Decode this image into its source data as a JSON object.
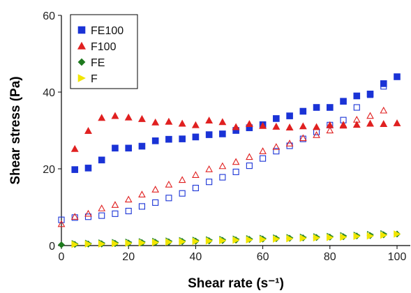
{
  "chart_data": {
    "type": "scatter",
    "xlabel": "Shear rate (s⁻¹)",
    "ylabel": "Shear stress (Pa)",
    "xlim": [
      0,
      105
    ],
    "ylim": [
      0,
      60
    ],
    "xticks": [
      "0",
      "20",
      "40",
      "60",
      "80",
      "100"
    ],
    "yticks": [
      "0",
      "20",
      "40",
      "60"
    ],
    "legend_position": "top-left",
    "grid": false,
    "series": [
      {
        "name": "FE100",
        "marker": "square",
        "color": "#1a33d6",
        "up": {
          "x": [
            4,
            8,
            12,
            16,
            20,
            24,
            28,
            32,
            36,
            40,
            44,
            48,
            52,
            56,
            60,
            64,
            68,
            72,
            76,
            80,
            84,
            88,
            92,
            96,
            100
          ],
          "y": [
            19.8,
            20.2,
            22.3,
            25.4,
            25.4,
            25.9,
            27.3,
            27.7,
            27.8,
            28.3,
            28.9,
            29.1,
            30.0,
            30.7,
            31.5,
            33.1,
            33.8,
            35.0,
            36.0,
            36.0,
            37.6,
            39.0,
            39.5,
            42.2,
            44.0
          ]
        },
        "down": {
          "x": [
            0,
            4,
            8,
            12,
            16,
            20,
            24,
            28,
            32,
            36,
            40,
            44,
            48,
            52,
            56,
            60,
            64,
            68,
            72,
            76,
            80,
            84,
            88,
            92,
            96
          ],
          "y": [
            6.7,
            7.3,
            7.5,
            7.8,
            8.3,
            9.0,
            10.2,
            11.2,
            12.4,
            13.6,
            15.0,
            16.6,
            17.8,
            19.2,
            20.8,
            22.7,
            24.6,
            26.0,
            27.8,
            29.6,
            31.4,
            32.7,
            36.0,
            39.3,
            41.5
          ]
        }
      },
      {
        "name": "F100",
        "marker": "triangle",
        "color": "#e02020",
        "up": {
          "x": [
            4,
            8,
            12,
            16,
            20,
            24,
            28,
            32,
            36,
            40,
            44,
            48,
            52,
            56,
            60,
            64,
            68,
            72,
            76,
            80,
            84,
            88,
            92,
            96,
            100
          ],
          "y": [
            25.2,
            29.9,
            33.3,
            33.8,
            33.4,
            33.0,
            32.1,
            32.3,
            31.8,
            31.4,
            32.6,
            32.2,
            30.9,
            31.7,
            31.2,
            31.0,
            30.8,
            31.1,
            30.9,
            31.4,
            31.3,
            31.5,
            31.8,
            31.7,
            31.9
          ]
        },
        "down": {
          "x": [
            0,
            4,
            8,
            12,
            16,
            20,
            24,
            28,
            32,
            36,
            40,
            44,
            48,
            52,
            56,
            60,
            64,
            68,
            72,
            76,
            80,
            84,
            88,
            92,
            96
          ],
          "y": [
            5.6,
            7.5,
            8.3,
            9.7,
            10.6,
            12.0,
            13.3,
            14.6,
            15.9,
            17.1,
            18.4,
            19.9,
            20.7,
            21.8,
            23.1,
            24.6,
            25.7,
            26.6,
            28.0,
            28.8,
            30.0,
            31.5,
            32.8,
            33.8,
            35.2
          ]
        }
      },
      {
        "name": "FE",
        "marker": "diamond",
        "color": "#1e7a1e",
        "up": {
          "x": [
            0,
            4,
            8,
            12,
            16,
            20,
            24,
            28,
            32,
            36,
            40,
            44,
            48,
            52,
            56,
            60,
            64,
            68,
            72,
            76,
            80,
            84,
            88,
            92,
            96,
            100
          ],
          "y": [
            0.2,
            0.3,
            0.4,
            0.4,
            0.5,
            0.6,
            0.7,
            0.8,
            0.9,
            1.0,
            1.1,
            1.2,
            1.3,
            1.4,
            1.6,
            1.7,
            1.8,
            1.9,
            2.0,
            2.1,
            2.2,
            2.3,
            2.5,
            2.6,
            2.8,
            3.0
          ]
        },
        "down": {
          "x": [
            4,
            8,
            12,
            16,
            20,
            24,
            28,
            32,
            36,
            40,
            44,
            48,
            52,
            56,
            60,
            64,
            68,
            72,
            76,
            80,
            84,
            88,
            92,
            96,
            100
          ],
          "y": [
            0.3,
            0.4,
            0.5,
            0.6,
            0.7,
            0.8,
            0.9,
            1.0,
            1.1,
            1.2,
            1.3,
            1.4,
            1.5,
            1.6,
            1.7,
            1.8,
            1.9,
            2.0,
            2.1,
            2.2,
            2.3,
            2.5,
            2.6,
            2.8,
            3.0
          ]
        }
      },
      {
        "name": "F",
        "marker": "triangle-right",
        "color": "#f2e600",
        "up": {
          "x": [
            4,
            8,
            12,
            16,
            20,
            24,
            28,
            32,
            36,
            40,
            44,
            48,
            52,
            56,
            60,
            64,
            68,
            72,
            76,
            80,
            84,
            88,
            92,
            96,
            100
          ],
          "y": [
            0.3,
            0.4,
            0.4,
            0.5,
            0.6,
            0.7,
            0.8,
            0.9,
            1.0,
            1.1,
            1.2,
            1.3,
            1.4,
            1.5,
            1.6,
            1.7,
            1.8,
            1.9,
            2.0,
            2.1,
            2.2,
            2.4,
            2.5,
            2.7,
            3.0
          ]
        },
        "down": {
          "x": [
            4,
            8,
            12,
            16,
            20,
            24,
            28,
            32,
            36,
            40,
            44,
            48,
            52,
            56,
            60,
            64,
            68,
            72,
            76,
            80,
            84,
            88,
            92,
            96
          ],
          "y": [
            0.5,
            0.6,
            0.7,
            0.8,
            0.9,
            1.0,
            1.1,
            1.2,
            1.3,
            1.4,
            1.5,
            1.6,
            1.7,
            1.8,
            1.9,
            2.0,
            2.1,
            2.2,
            2.3,
            2.4,
            2.6,
            2.7,
            2.9,
            3.1
          ]
        }
      }
    ]
  }
}
